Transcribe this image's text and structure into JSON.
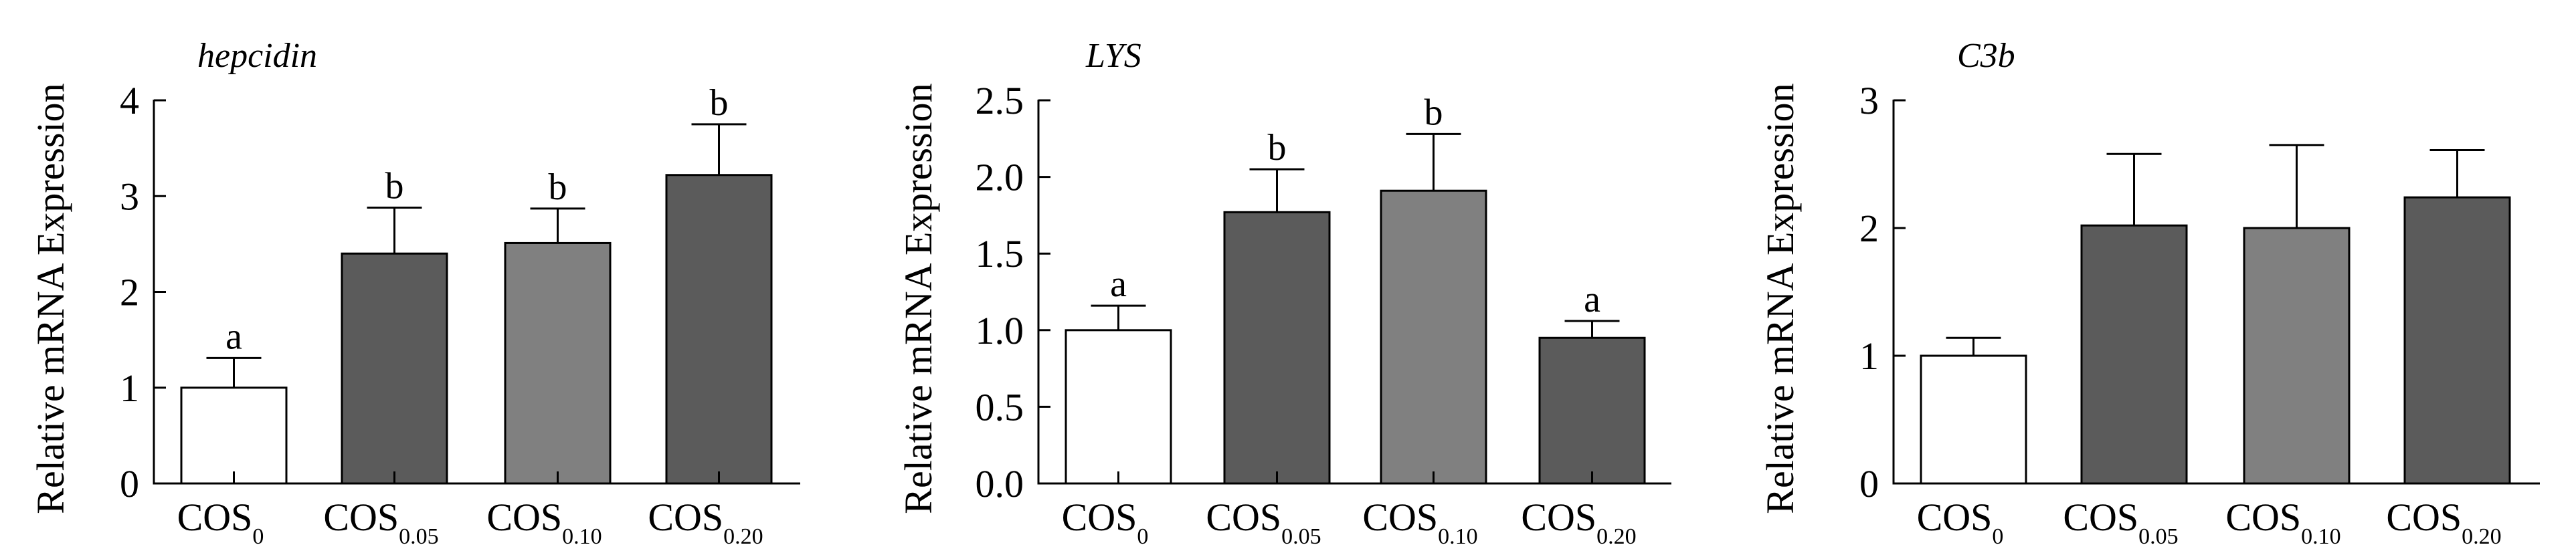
{
  "chart_data": [
    {
      "type": "bar",
      "title": "hepcidin",
      "ylabel": "Relative mRNA Expression",
      "xlabel": "",
      "ylim": [
        0,
        4
      ],
      "yticks": [
        0,
        1,
        2,
        3,
        4
      ],
      "ytick_labels": [
        "0",
        "1",
        "2",
        "3",
        "4"
      ],
      "categories": [
        {
          "main": "COS",
          "sub": "0"
        },
        {
          "main": "COS",
          "sub": "0.05"
        },
        {
          "main": "COS",
          "sub": "0.10"
        },
        {
          "main": "COS",
          "sub": "0.20"
        }
      ],
      "values": [
        1.0,
        2.4,
        2.51,
        3.22
      ],
      "error_upper": [
        0.31,
        0.48,
        0.36,
        0.53
      ],
      "significance": [
        "a",
        "b",
        "b",
        "b"
      ],
      "bar_colors": [
        "#ffffff",
        "#5b5b5b",
        "#808080",
        "#5b5b5b"
      ],
      "grid": false,
      "legend": "none"
    },
    {
      "type": "bar",
      "title": "LYS",
      "ylabel": "Relative mRNA Expression",
      "xlabel": "",
      "ylim": [
        0,
        2.5
      ],
      "yticks": [
        0,
        0.5,
        1.0,
        1.5,
        2.0,
        2.5
      ],
      "ytick_labels": [
        "0.0",
        "0.5",
        "1.0",
        "1.5",
        "2.0",
        "2.5"
      ],
      "categories": [
        {
          "main": "COS",
          "sub": "0"
        },
        {
          "main": "COS",
          "sub": "0.05"
        },
        {
          "main": "COS",
          "sub": "0.10"
        },
        {
          "main": "COS",
          "sub": "0.20"
        }
      ],
      "values": [
        1.0,
        1.77,
        1.91,
        0.95
      ],
      "error_upper": [
        0.16,
        0.28,
        0.37,
        0.11
      ],
      "significance": [
        "a",
        "b",
        "b",
        "a"
      ],
      "bar_colors": [
        "#ffffff",
        "#5b5b5b",
        "#808080",
        "#5b5b5b"
      ],
      "grid": false,
      "legend": "none"
    },
    {
      "type": "bar",
      "title": "C3b",
      "ylabel": "Relative mRNA Expression",
      "xlabel": "",
      "ylim": [
        0,
        3
      ],
      "yticks": [
        0,
        1,
        2,
        3
      ],
      "ytick_labels": [
        "0",
        "1",
        "2",
        "3"
      ],
      "categories": [
        {
          "main": "COS",
          "sub": "0"
        },
        {
          "main": "COS",
          "sub": "0.05"
        },
        {
          "main": "COS",
          "sub": "0.10"
        },
        {
          "main": "COS",
          "sub": "0.20"
        }
      ],
      "values": [
        1.0,
        2.02,
        2.0,
        2.24
      ],
      "error_upper": [
        0.14,
        0.56,
        0.65,
        0.37
      ],
      "significance": [
        "",
        "",
        "",
        ""
      ],
      "bar_colors": [
        "#ffffff",
        "#5b5b5b",
        "#808080",
        "#5b5b5b"
      ],
      "grid": false,
      "legend": "none"
    }
  ]
}
